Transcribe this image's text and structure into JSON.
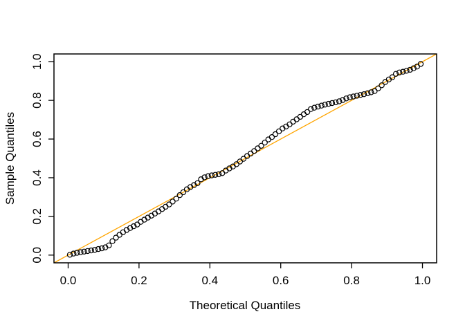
{
  "chart_data": {
    "type": "scatter",
    "title": "",
    "xlabel": "Theoretical Quantiles",
    "ylabel": "Sample Quantiles",
    "x_tick_values": [
      0.0,
      0.2,
      0.4,
      0.6,
      0.8,
      1.0
    ],
    "y_tick_values": [
      0.0,
      0.2,
      0.4,
      0.6,
      0.8,
      1.0
    ],
    "x_tick_labels": [
      "0.0",
      "0.2",
      "0.4",
      "0.6",
      "0.8",
      "1.0"
    ],
    "y_tick_labels": [
      "0.0",
      "0.2",
      "0.4",
      "0.6",
      "0.8",
      "1.0"
    ],
    "xlim": [
      -0.04,
      1.04
    ],
    "ylim": [
      -0.04,
      1.04
    ],
    "grid": false,
    "legend": null,
    "reference_line": {
      "intercept": 0,
      "slope": 1,
      "color": "#FFA500"
    },
    "point_style": {
      "shape": "open-circle",
      "stroke": "#000000",
      "fill": "none",
      "radius_px": 3.6
    },
    "x": [
      0.005,
      0.015,
      0.025,
      0.035,
      0.045,
      0.055,
      0.065,
      0.075,
      0.085,
      0.095,
      0.105,
      0.115,
      0.125,
      0.135,
      0.145,
      0.155,
      0.165,
      0.175,
      0.185,
      0.195,
      0.205,
      0.215,
      0.225,
      0.235,
      0.245,
      0.255,
      0.265,
      0.275,
      0.285,
      0.295,
      0.305,
      0.315,
      0.325,
      0.335,
      0.345,
      0.355,
      0.365,
      0.375,
      0.385,
      0.395,
      0.405,
      0.415,
      0.425,
      0.435,
      0.445,
      0.455,
      0.465,
      0.475,
      0.485,
      0.495,
      0.505,
      0.515,
      0.525,
      0.535,
      0.545,
      0.555,
      0.565,
      0.575,
      0.585,
      0.595,
      0.605,
      0.615,
      0.625,
      0.635,
      0.645,
      0.655,
      0.665,
      0.675,
      0.685,
      0.695,
      0.705,
      0.715,
      0.725,
      0.735,
      0.745,
      0.755,
      0.765,
      0.775,
      0.785,
      0.795,
      0.805,
      0.815,
      0.825,
      0.835,
      0.845,
      0.855,
      0.865,
      0.875,
      0.885,
      0.895,
      0.905,
      0.915,
      0.925,
      0.935,
      0.945,
      0.955,
      0.965,
      0.975,
      0.985,
      0.995
    ],
    "y": [
      0.002,
      0.008,
      0.012,
      0.015,
      0.018,
      0.021,
      0.024,
      0.027,
      0.031,
      0.035,
      0.04,
      0.05,
      0.072,
      0.09,
      0.105,
      0.118,
      0.13,
      0.14,
      0.149,
      0.158,
      0.172,
      0.183,
      0.194,
      0.204,
      0.215,
      0.226,
      0.238,
      0.25,
      0.262,
      0.277,
      0.292,
      0.31,
      0.325,
      0.34,
      0.352,
      0.362,
      0.372,
      0.392,
      0.402,
      0.408,
      0.412,
      0.415,
      0.418,
      0.424,
      0.437,
      0.448,
      0.458,
      0.47,
      0.484,
      0.498,
      0.512,
      0.525,
      0.538,
      0.552,
      0.565,
      0.582,
      0.598,
      0.61,
      0.625,
      0.64,
      0.655,
      0.665,
      0.676,
      0.69,
      0.702,
      0.715,
      0.728,
      0.74,
      0.755,
      0.762,
      0.768,
      0.773,
      0.778,
      0.782,
      0.786,
      0.79,
      0.795,
      0.802,
      0.81,
      0.816,
      0.82,
      0.824,
      0.828,
      0.832,
      0.837,
      0.842,
      0.848,
      0.862,
      0.878,
      0.895,
      0.908,
      0.92,
      0.937,
      0.944,
      0.948,
      0.953,
      0.958,
      0.966,
      0.975,
      0.988
    ]
  },
  "colors": {
    "background": "#FFFFFF",
    "frame": "#000000",
    "reference_line": "#FFA500",
    "points": "#000000"
  }
}
